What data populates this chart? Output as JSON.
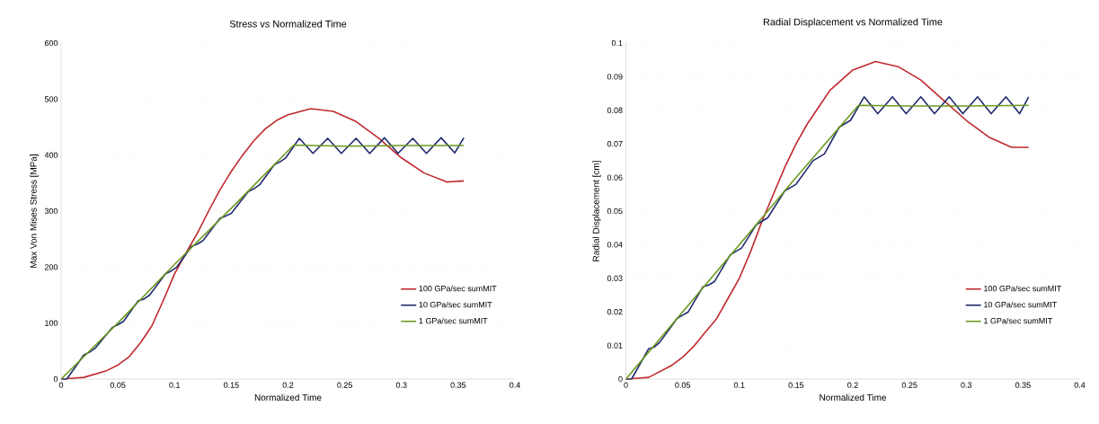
{
  "chart_data": [
    {
      "type": "line",
      "title": "Stress vs Normalized Time",
      "xlabel": "Normalized Time",
      "ylabel": "Max Von Mises Stress [MPa]",
      "xlim": [
        0,
        0.4
      ],
      "xticks": [
        0,
        0.05,
        0.1,
        0.15,
        0.2,
        0.25,
        0.3,
        0.35,
        0.4
      ],
      "ylim": [
        0,
        600
      ],
      "yticks": [
        0,
        100,
        200,
        300,
        400,
        500,
        600
      ],
      "grid": "y",
      "legend": "bottom right",
      "series": [
        {
          "name": "100 GPa/sec sumMIT",
          "color": "#c0282d",
          "x": [
            0,
            0.02,
            0.04,
            0.05,
            0.06,
            0.07,
            0.08,
            0.09,
            0.1,
            0.11,
            0.12,
            0.13,
            0.14,
            0.15,
            0.16,
            0.17,
            0.18,
            0.19,
            0.2,
            0.22,
            0.24,
            0.26,
            0.28,
            0.3,
            0.32,
            0.34,
            0.355
          ],
          "values": [
            0,
            3,
            15,
            25,
            40,
            65,
            95,
            140,
            188,
            225,
            260,
            300,
            338,
            371,
            400,
            426,
            447,
            462,
            472,
            483,
            478,
            460,
            430,
            395,
            368,
            352,
            354
          ]
        },
        {
          "name": "10 GPa/sec sumMIT",
          "color": "#1f2a6e",
          "x": [
            0,
            0.005,
            0.02,
            0.025,
            0.03,
            0.045,
            0.05,
            0.055,
            0.068,
            0.073,
            0.078,
            0.092,
            0.097,
            0.102,
            0.115,
            0.12,
            0.125,
            0.14,
            0.145,
            0.15,
            0.165,
            0.17,
            0.175,
            0.188,
            0.193,
            0.198,
            0.21,
            0.222,
            0.235,
            0.247,
            0.26,
            0.272,
            0.285,
            0.297,
            0.31,
            0.322,
            0.335,
            0.347,
            0.355
          ],
          "values": [
            0,
            0,
            43,
            48,
            55,
            92,
            97,
            103,
            140,
            143,
            150,
            188,
            193,
            200,
            237,
            241,
            247,
            287,
            291,
            296,
            335,
            340,
            347,
            383,
            388,
            395,
            430,
            403,
            430,
            403,
            430,
            403,
            431,
            403,
            430,
            403,
            431,
            404,
            431
          ]
        },
        {
          "name": "1 GPa/sec sumMIT",
          "color": "#6a9a1f",
          "x": [
            0,
            0.05,
            0.1,
            0.15,
            0.205,
            0.25,
            0.3,
            0.355
          ],
          "values": [
            0,
            100,
            205,
            305,
            418,
            416,
            417,
            417
          ]
        }
      ]
    },
    {
      "type": "line",
      "title": "Radial Displacement vs Normalized Time",
      "xlabel": "Normalized Time",
      "ylabel": "Radial Displacement [cm]",
      "xlim": [
        0,
        0.4
      ],
      "xticks": [
        0,
        0.05,
        0.1,
        0.15,
        0.2,
        0.25,
        0.3,
        0.35,
        0.4
      ],
      "ylim": [
        0,
        0.1
      ],
      "yticks": [
        0,
        0.01,
        0.02,
        0.03,
        0.04,
        0.05,
        0.06,
        0.07,
        0.08,
        0.09,
        0.1
      ],
      "grid": "y",
      "legend": "bottom right",
      "series": [
        {
          "name": "100 GPa/sec sumMIT",
          "color": "#c0282d",
          "x": [
            0,
            0.02,
            0.04,
            0.05,
            0.06,
            0.07,
            0.08,
            0.09,
            0.1,
            0.11,
            0.12,
            0.13,
            0.14,
            0.15,
            0.16,
            0.17,
            0.18,
            0.19,
            0.2,
            0.22,
            0.24,
            0.26,
            0.28,
            0.3,
            0.32,
            0.34,
            0.355
          ],
          "values": [
            0,
            0.0005,
            0.004,
            0.0065,
            0.0098,
            0.014,
            0.018,
            0.024,
            0.03,
            0.038,
            0.047,
            0.055,
            0.063,
            0.07,
            0.076,
            0.081,
            0.086,
            0.089,
            0.092,
            0.0945,
            0.093,
            0.089,
            0.083,
            0.077,
            0.072,
            0.069,
            0.069
          ]
        },
        {
          "name": "10 GPa/sec sumMIT",
          "color": "#1f2a6e",
          "x": [
            0,
            0.005,
            0.02,
            0.025,
            0.03,
            0.045,
            0.05,
            0.055,
            0.068,
            0.073,
            0.078,
            0.092,
            0.097,
            0.102,
            0.115,
            0.12,
            0.125,
            0.14,
            0.145,
            0.15,
            0.165,
            0.17,
            0.175,
            0.188,
            0.193,
            0.198,
            0.21,
            0.222,
            0.235,
            0.247,
            0.26,
            0.272,
            0.285,
            0.297,
            0.31,
            0.322,
            0.335,
            0.347,
            0.355
          ],
          "values": [
            0,
            0,
            0.009,
            0.0095,
            0.011,
            0.018,
            0.019,
            0.02,
            0.0275,
            0.028,
            0.029,
            0.037,
            0.038,
            0.039,
            0.046,
            0.047,
            0.048,
            0.056,
            0.057,
            0.058,
            0.065,
            0.066,
            0.067,
            0.075,
            0.076,
            0.077,
            0.084,
            0.079,
            0.084,
            0.079,
            0.084,
            0.079,
            0.084,
            0.079,
            0.084,
            0.079,
            0.084,
            0.079,
            0.084
          ]
        },
        {
          "name": "1 GPa/sec sumMIT",
          "color": "#6a9a1f",
          "x": [
            0,
            0.05,
            0.1,
            0.15,
            0.205,
            0.25,
            0.3,
            0.355
          ],
          "values": [
            0,
            0.02,
            0.04,
            0.06,
            0.0815,
            0.0813,
            0.0813,
            0.0815
          ]
        }
      ]
    }
  ]
}
